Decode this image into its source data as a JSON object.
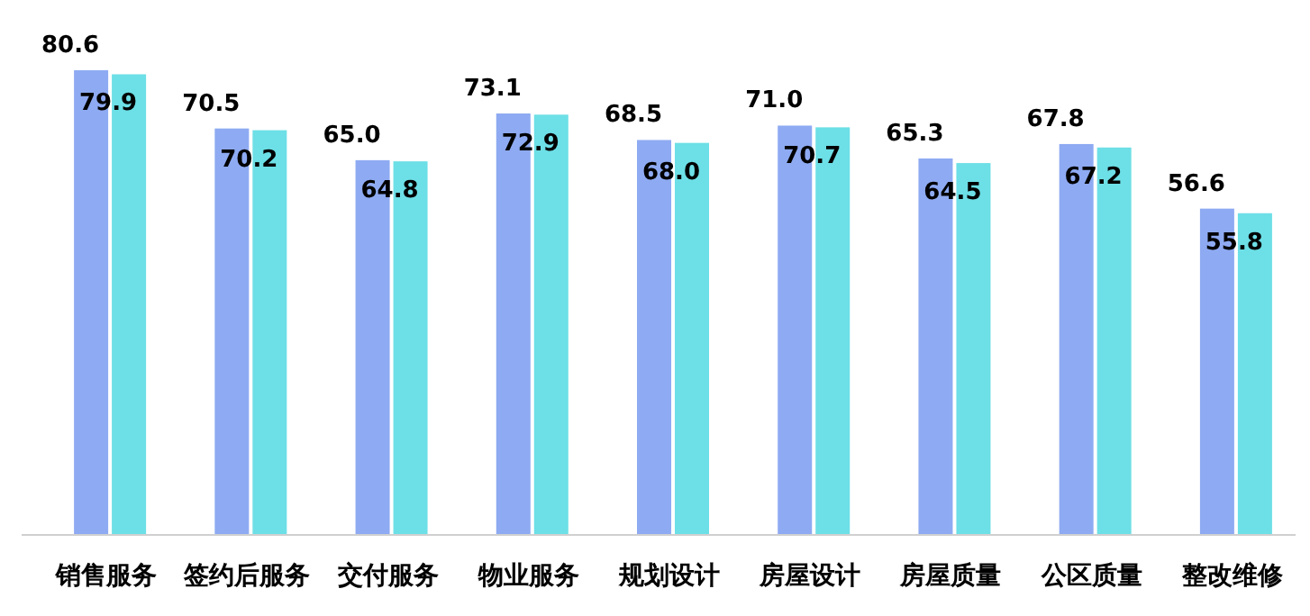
{
  "chart_data": {
    "type": "bar",
    "categories": [
      "销售服务",
      "签约后服务",
      "交付服务",
      "物业服务",
      "规划设计",
      "房屋设计",
      "房屋质量",
      "公区质量",
      "整改维修"
    ],
    "series": [
      {
        "color": "#8eaaf2",
        "values": [
          80.6,
          70.5,
          65.0,
          73.1,
          68.5,
          71.0,
          65.3,
          67.8,
          56.6
        ],
        "value_labels": [
          "80.6",
          "70.5",
          "65.0",
          "73.1",
          "68.5",
          "71.0",
          "65.3",
          "67.8",
          "56.6"
        ]
      },
      {
        "color": "#6ddfe6",
        "values": [
          79.9,
          70.2,
          64.8,
          72.9,
          68.0,
          70.7,
          64.5,
          67.2,
          55.8
        ],
        "value_labels": [
          "79.9",
          "70.2",
          "64.8",
          "72.9",
          "68.0",
          "70.7",
          "64.5",
          "67.2",
          "55.8"
        ]
      }
    ]
  }
}
